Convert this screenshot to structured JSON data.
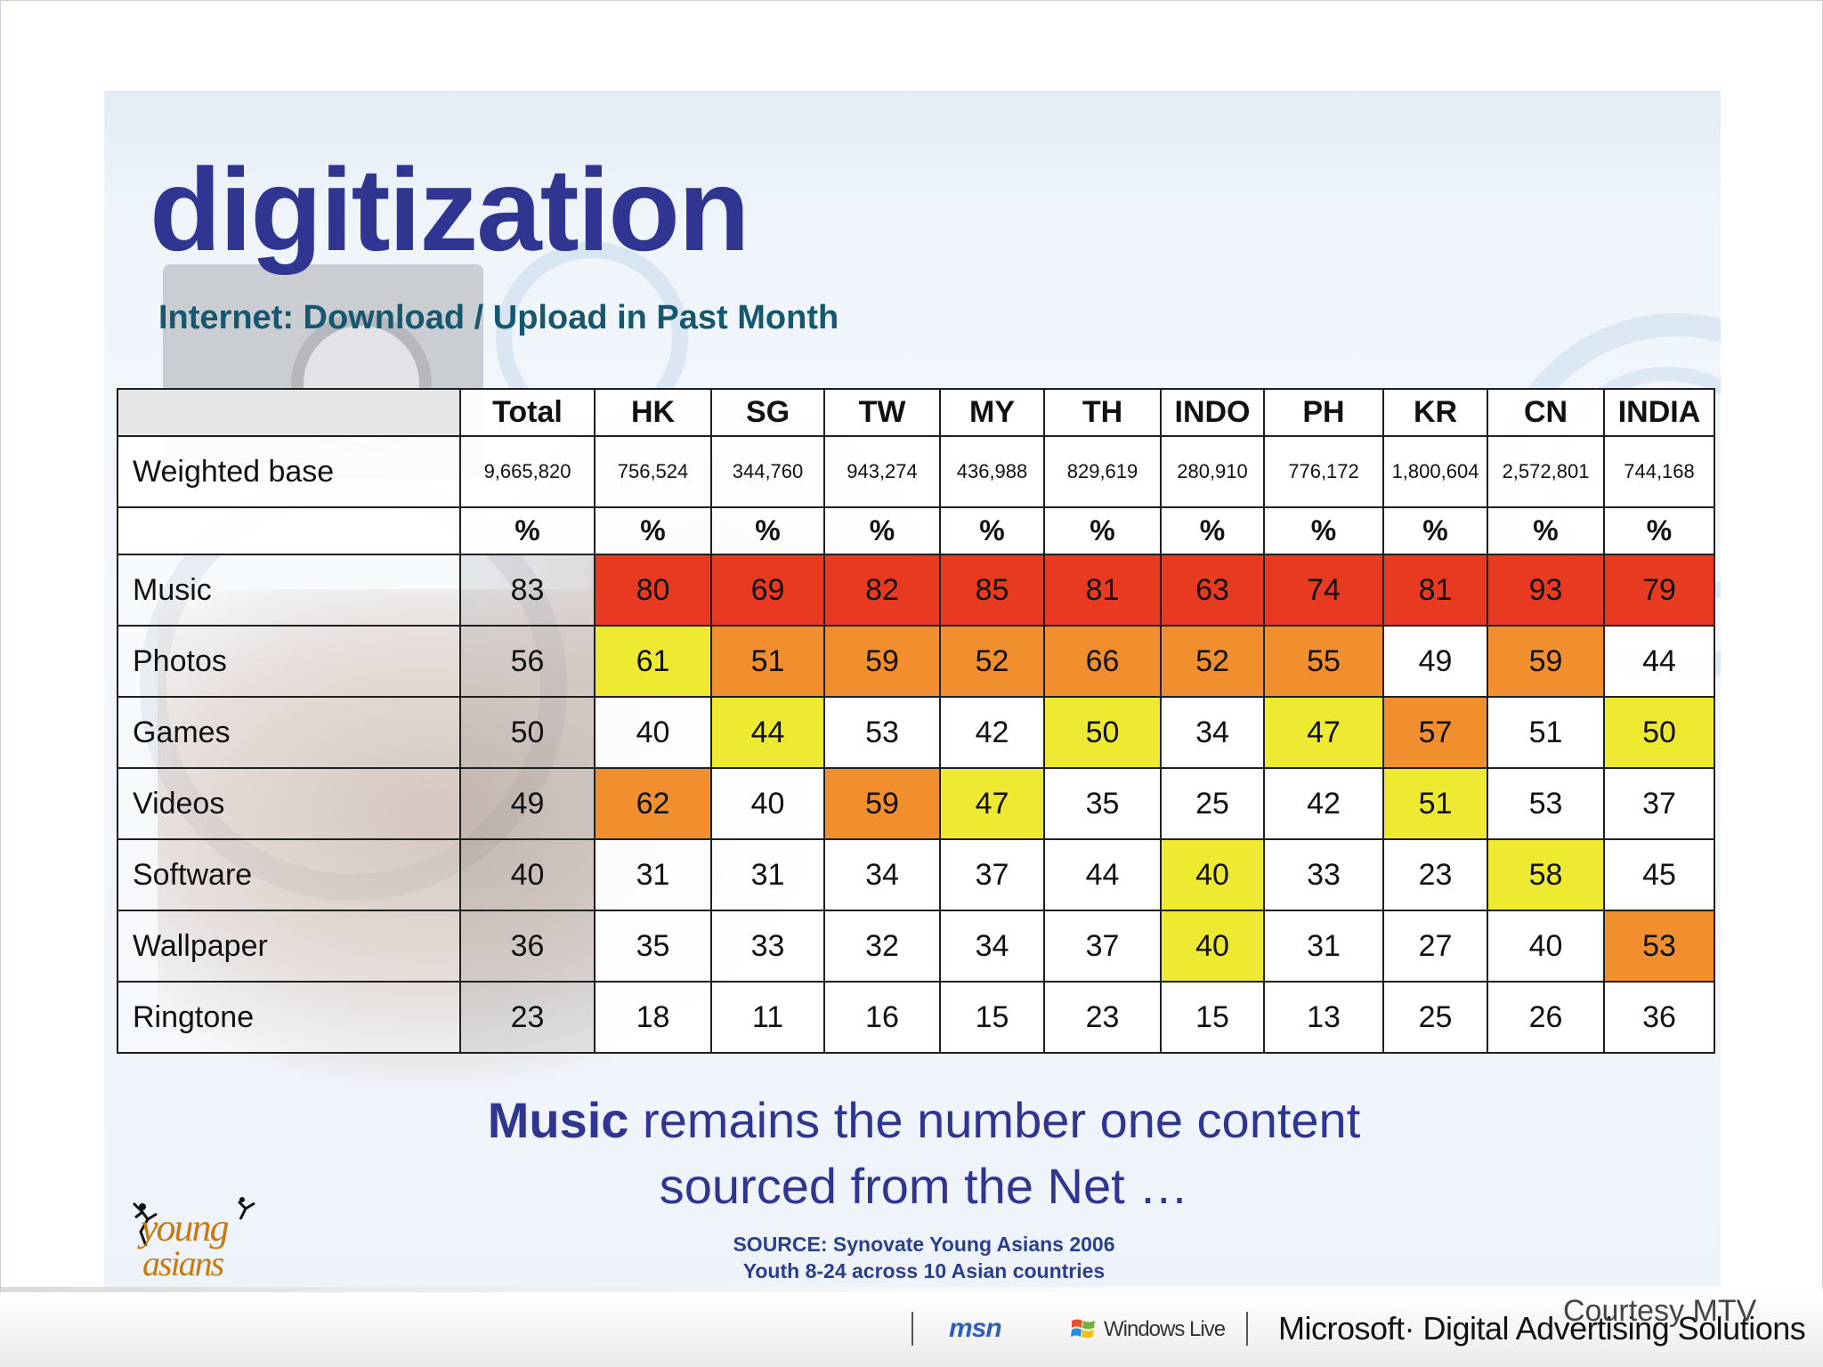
{
  "slide": {
    "title": "digitization",
    "subtitle": "Internet: Download / Upload in Past Month"
  },
  "table": {
    "columns": [
      "Total",
      "HK",
      "SG",
      "TW",
      "MY",
      "TH",
      "INDO",
      "PH",
      "KR",
      "CN",
      "INDIA"
    ],
    "weighted_base": {
      "label": "Weighted base",
      "values": [
        "9,665,820",
        "756,524",
        "344,760",
        "943,274",
        "436,988",
        "829,619",
        "280,910",
        "776,172",
        "1,800,604",
        "2,572,801",
        "744,168"
      ]
    },
    "unit_row": [
      "%",
      "%",
      "%",
      "%",
      "%",
      "%",
      "%",
      "%",
      "%",
      "%",
      "%"
    ],
    "rows": [
      {
        "label": "Music",
        "values": [
          83,
          80,
          69,
          82,
          85,
          81,
          63,
          74,
          81,
          93,
          79
        ]
      },
      {
        "label": "Photos",
        "values": [
          56,
          61,
          51,
          59,
          52,
          66,
          52,
          55,
          49,
          59,
          44
        ]
      },
      {
        "label": "Games",
        "values": [
          50,
          40,
          44,
          53,
          42,
          50,
          34,
          47,
          57,
          51,
          50
        ]
      },
      {
        "label": "Videos",
        "values": [
          49,
          62,
          40,
          59,
          47,
          35,
          25,
          42,
          51,
          53,
          37
        ]
      },
      {
        "label": "Software",
        "values": [
          40,
          31,
          31,
          34,
          37,
          44,
          40,
          33,
          23,
          58,
          45
        ]
      },
      {
        "label": "Wallpaper",
        "values": [
          36,
          35,
          33,
          32,
          34,
          37,
          40,
          31,
          27,
          40,
          53
        ]
      },
      {
        "label": "Ringtone",
        "values": [
          23,
          18,
          11,
          16,
          15,
          23,
          15,
          13,
          25,
          26,
          36
        ]
      }
    ]
  },
  "caption": {
    "bold": "Music",
    "rest_line1": " remains the number one content",
    "line2": "sourced from the Net …"
  },
  "source": {
    "line1": "SOURCE: Synovate Young Asians 2006",
    "line2": "Youth 8-24 across 10 Asian countries"
  },
  "logo": {
    "line1": "young",
    "line2": "asians"
  },
  "footer": {
    "msn": "msn",
    "windows_live": "Windows Live",
    "microsoft": "Microsoft· Digital Advertising Solutions",
    "courtesy": "Courtesy MTV"
  },
  "colors": {
    "title": "#2f3591",
    "red_highlight": "#e83a21",
    "orange_highlight": "#f18e2e",
    "yellow_highlight": "#eeea32"
  }
}
